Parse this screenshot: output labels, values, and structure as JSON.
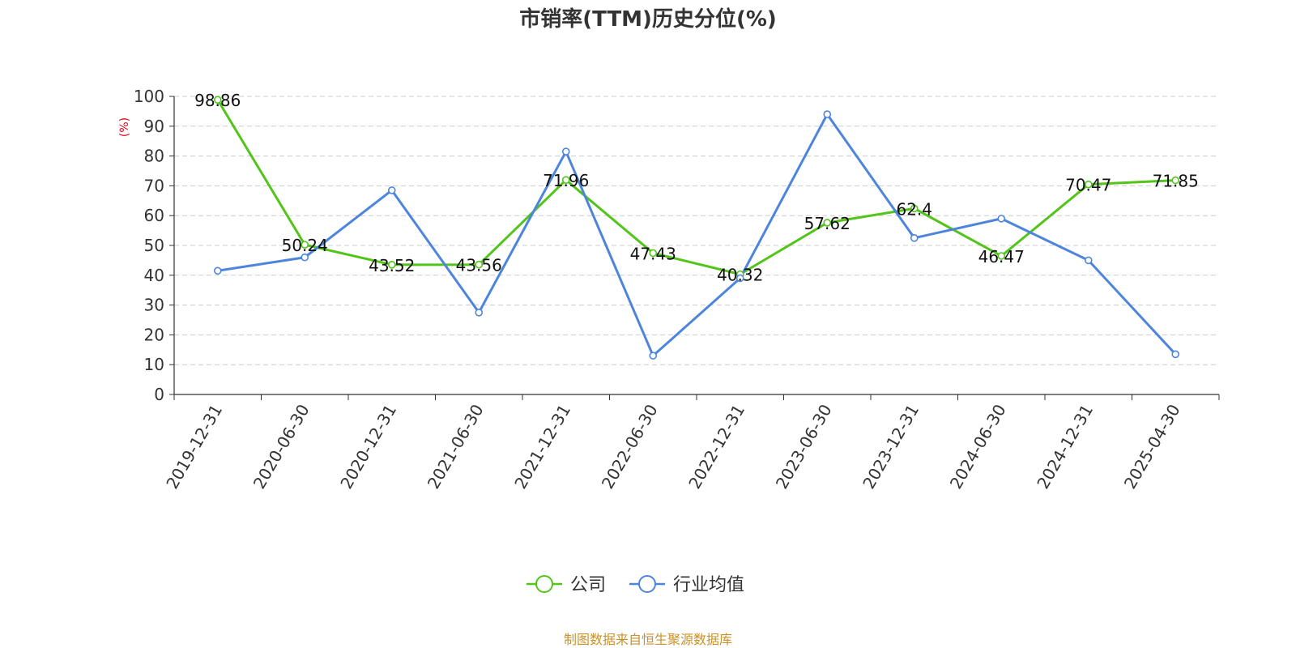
{
  "chart_data": {
    "type": "line",
    "title": "市销率(TTM)历史分位(%)",
    "ylabel": "(%)",
    "xlabel": "",
    "ylim": [
      0,
      100
    ],
    "yticks": [
      0,
      10,
      20,
      30,
      40,
      50,
      60,
      70,
      80,
      90,
      100
    ],
    "grid": true,
    "legend_position": "bottom-center",
    "categories": [
      "2019-12-31",
      "2020-06-30",
      "2020-12-31",
      "2021-06-30",
      "2021-12-31",
      "2022-06-30",
      "2022-12-31",
      "2023-06-30",
      "2023-12-31",
      "2024-06-30",
      "2024-12-31",
      "2025-04-30"
    ],
    "series": [
      {
        "name": "公司",
        "color": "#52c41a",
        "values": [
          98.86,
          50.24,
          43.52,
          43.56,
          71.96,
          47.43,
          40.32,
          57.62,
          62.4,
          46.47,
          70.47,
          71.85
        ],
        "labels": [
          "98.86",
          "50.24",
          "43.52",
          "43.56",
          "71.96",
          "47.43",
          "40.32",
          "57.62",
          "62.4",
          "46.47",
          "70.47",
          "71.85"
        ]
      },
      {
        "name": "行业均值",
        "color": "#4e85dc",
        "values": [
          41.5,
          46,
          68.5,
          27.5,
          81.5,
          13,
          39,
          94,
          52.5,
          59,
          45,
          13.5
        ]
      }
    ]
  },
  "ylabel_color": "#e60012",
  "source": {
    "text": "制图数据来自恒生聚源数据库",
    "color": "#c8922c"
  }
}
